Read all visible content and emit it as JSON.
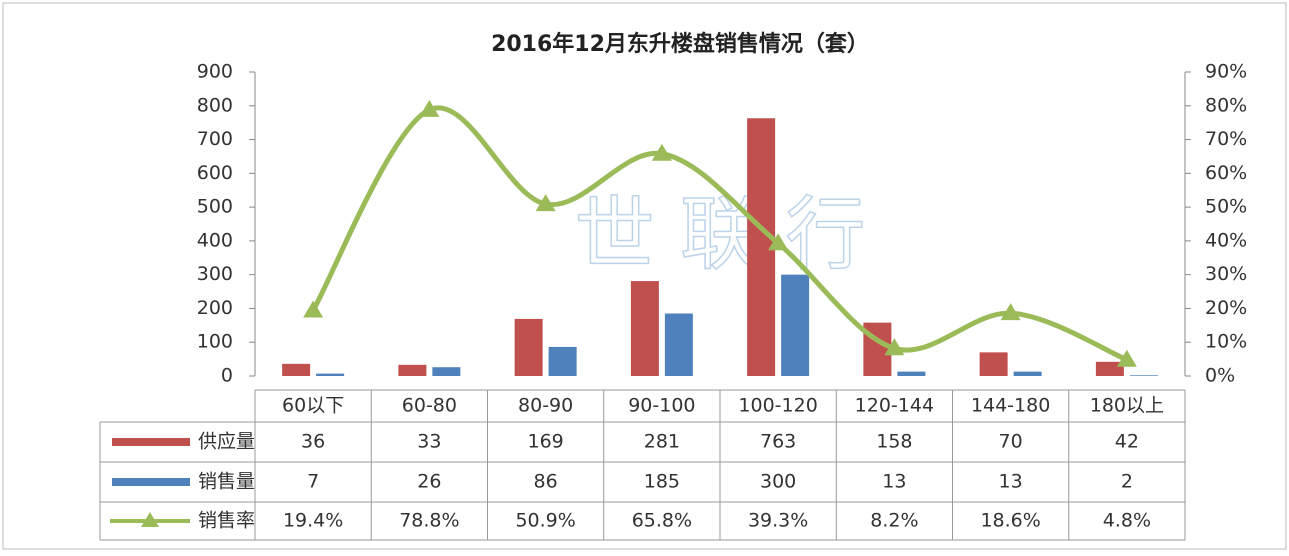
{
  "chart_data": {
    "type": "bar",
    "title": "2016年12月东升楼盘销售情况（套）",
    "watermark": "世 联 行",
    "categories": [
      "60以下",
      "60-80",
      "80-90",
      "90-100",
      "100-120",
      "120-144",
      "144-180",
      "180以上"
    ],
    "series": [
      {
        "name": "供应量",
        "color": "#c0504d",
        "values": [
          36,
          33,
          169,
          281,
          763,
          158,
          70,
          42
        ]
      },
      {
        "name": "销售量",
        "color": "#4f81bd",
        "values": [
          7,
          26,
          86,
          185,
          300,
          13,
          13,
          2
        ]
      },
      {
        "name": "销售率",
        "type": "line",
        "axis": "y2",
        "color": "#9bbb59",
        "values": [
          19.4,
          78.8,
          50.9,
          65.8,
          39.3,
          8.2,
          18.6,
          4.8
        ],
        "value_labels": [
          "19.4%",
          "78.8%",
          "50.9%",
          "65.8%",
          "39.3%",
          "8.2%",
          "18.6%",
          "4.8%"
        ]
      }
    ],
    "ylim": [
      0,
      900
    ],
    "yticks": [
      0,
      100,
      200,
      300,
      400,
      500,
      600,
      700,
      800,
      900
    ],
    "y2lim": [
      0,
      90
    ],
    "y2ticks": [
      {
        "value": 0,
        "label": "0%"
      },
      {
        "value": 10,
        "label": "10%"
      },
      {
        "value": 20,
        "label": "20%"
      },
      {
        "value": 30,
        "label": "30%"
      },
      {
        "value": 40,
        "label": "40%"
      },
      {
        "value": 50,
        "label": "50%"
      },
      {
        "value": 60,
        "label": "60%"
      },
      {
        "value": 70,
        "label": "70%"
      },
      {
        "value": 80,
        "label": "80%"
      },
      {
        "value": 90,
        "label": "90%"
      }
    ]
  }
}
